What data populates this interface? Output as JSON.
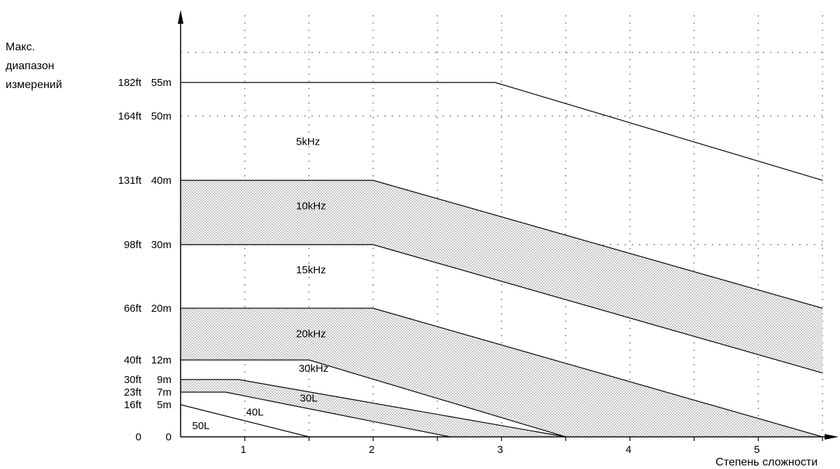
{
  "chart_data": {
    "type": "line",
    "ylabel_lines": [
      "Макс.",
      "диапазон",
      "измерений"
    ],
    "xlabel": "Степень сложности",
    "x_ticks": [
      "1",
      "2",
      "3",
      "4",
      "5"
    ],
    "xlim": [
      0,
      5
    ],
    "ylim": [
      0,
      55
    ],
    "y_ticks": [
      {
        "ft": "0",
        "m": "0",
        "value": 0
      },
      {
        "ft": "16ft",
        "m": "5m",
        "value": 5
      },
      {
        "ft": "23ft",
        "m": "7m",
        "value": 7
      },
      {
        "ft": "30ft",
        "m": "9m",
        "value": 9
      },
      {
        "ft": "40ft",
        "m": "12m",
        "value": 12
      },
      {
        "ft": "66ft",
        "m": "20m",
        "value": 20
      },
      {
        "ft": "98ft",
        "m": "30m",
        "value": 30
      },
      {
        "ft": "131ft",
        "m": "40m",
        "value": 40
      },
      {
        "ft": "164ft",
        "m": "50m",
        "value": 50
      },
      {
        "ft": "182ft",
        "m": "55m",
        "value": 55
      }
    ],
    "series": [
      {
        "name": "5kHz",
        "points": [
          [
            0,
            55
          ],
          [
            2.45,
            55
          ],
          [
            5,
            40
          ]
        ]
      },
      {
        "name": "10kHz",
        "points": [
          [
            0,
            40
          ],
          [
            1.5,
            40
          ],
          [
            5,
            20
          ]
        ]
      },
      {
        "name": "15kHz",
        "points": [
          [
            0,
            30
          ],
          [
            1.5,
            30
          ],
          [
            5,
            10
          ]
        ]
      },
      {
        "name": "20kHz",
        "points": [
          [
            0,
            20
          ],
          [
            1.5,
            20
          ],
          [
            5,
            0
          ]
        ]
      },
      {
        "name": "30kHz",
        "points": [
          [
            0,
            12
          ],
          [
            1,
            12
          ],
          [
            3,
            0
          ]
        ]
      },
      {
        "name": "30L",
        "points": [
          [
            0,
            9
          ],
          [
            0.45,
            9
          ],
          [
            3,
            0
          ]
        ]
      },
      {
        "name": "40L",
        "points": [
          [
            0,
            7
          ],
          [
            0.35,
            7
          ],
          [
            2.1,
            0
          ]
        ]
      },
      {
        "name": "50L",
        "points": [
          [
            0,
            5
          ],
          [
            1,
            0
          ]
        ]
      }
    ],
    "shaded_bands": [
      {
        "between": [
          "10kHz",
          "15kHz"
        ]
      },
      {
        "between": [
          "20kHz",
          "30kHz"
        ]
      },
      {
        "between": [
          "30L",
          "40L"
        ]
      }
    ],
    "region_labels": [
      {
        "text": "5kHz",
        "x": 0.9,
        "y": 45.5
      },
      {
        "text": "10kHz",
        "x": 0.9,
        "y": 35.5
      },
      {
        "text": "15kHz",
        "x": 0.9,
        "y": 25.5
      },
      {
        "text": "20kHz",
        "x": 0.9,
        "y": 15.5
      },
      {
        "text": "30kHz",
        "x": 0.92,
        "y": 10.2
      },
      {
        "text": "30L",
        "x": 0.93,
        "y": 5.5
      },
      {
        "text": "40L",
        "x": 0.51,
        "y": 3.3
      },
      {
        "text": "50L",
        "x": 0.09,
        "y": 1.2
      }
    ],
    "grid": true,
    "colors": {
      "line": "#000000",
      "grid": "#555555",
      "shade": "#d8d8d8"
    }
  }
}
